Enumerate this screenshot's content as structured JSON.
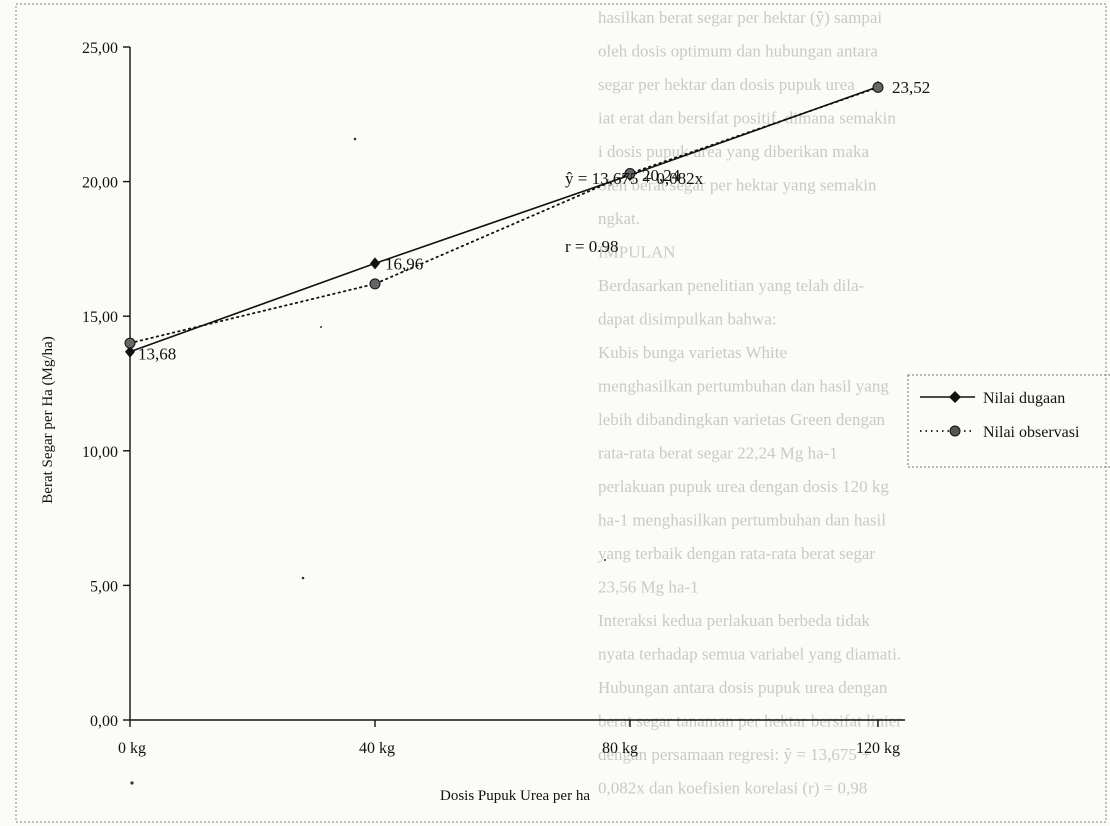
{
  "chart_data": {
    "type": "line",
    "title": "",
    "xlabel": "Dosis Pupuk Urea per ha",
    "ylabel": "Berat Segar per Ha (Mg/ha)",
    "categories": [
      "0 kg",
      "40 kg",
      "80 kg",
      "120 kg"
    ],
    "x": [
      0,
      40,
      80,
      120
    ],
    "ylim": [
      0,
      25
    ],
    "yticks": [
      "0,00",
      "5,00",
      "10,00",
      "15,00",
      "20,00",
      "25,00"
    ],
    "grid": false,
    "legend_position": "right",
    "series": [
      {
        "name": "Nilai dugaan",
        "values": [
          13.68,
          16.96,
          20.24,
          23.52
        ],
        "line": "solid",
        "marker": "diamond"
      },
      {
        "name": "Nilai observasi",
        "values": [
          14.0,
          16.2,
          20.3,
          23.5
        ],
        "line": "dotted",
        "marker": "circle"
      }
    ],
    "data_labels": [
      "13,68",
      "16,96",
      "20,24",
      "23,52"
    ],
    "annotations": {
      "equation": "ŷ = 13,675 + 0,082x",
      "correlation": "r = 0.98"
    }
  },
  "colors": {
    "line": "#111111",
    "bleed_text": "#c9c9c6",
    "background": "#fbfbf8"
  },
  "bleed_text": [
    "hasilkan berat segar per hektar (ŷ) sampai",
    "oleh dosis optimum dan hubungan antara",
    "segar per hektar dan dosis pupuk urea",
    "iat erat dan bersifat positif, dimana semakin",
    "i dosis pupuk urea yang diberikan maka",
    "oleh berat segar per hektar yang semakin",
    "ngkat.",
    "IMPULAN",
    "Berdasarkan penelitian yang telah dila-",
    "dapat disimpulkan bahwa:",
    "Kubis bunga varietas White",
    "menghasilkan pertumbuhan dan hasil yang",
    "lebih dibandingkan varietas Green dengan",
    "rata-rata berat segar 22,24 Mg ha-1",
    "perlakuan pupuk urea dengan dosis 120 kg",
    "ha-1 menghasilkan pertumbuhan dan hasil",
    "yang terbaik dengan rata-rata berat segar",
    "23,56 Mg ha-1",
    "Interaksi kedua perlakuan berbeda tidak",
    "nyata terhadap semua variabel yang diamati.",
    "Hubungan antara dosis pupuk urea dengan",
    "berat segar tanaman per hektar bersifat linier",
    "dengan persamaan regresi: ŷ = 13,675 +",
    "0,082x dan koefisien korelasi (r) = 0,98"
  ]
}
